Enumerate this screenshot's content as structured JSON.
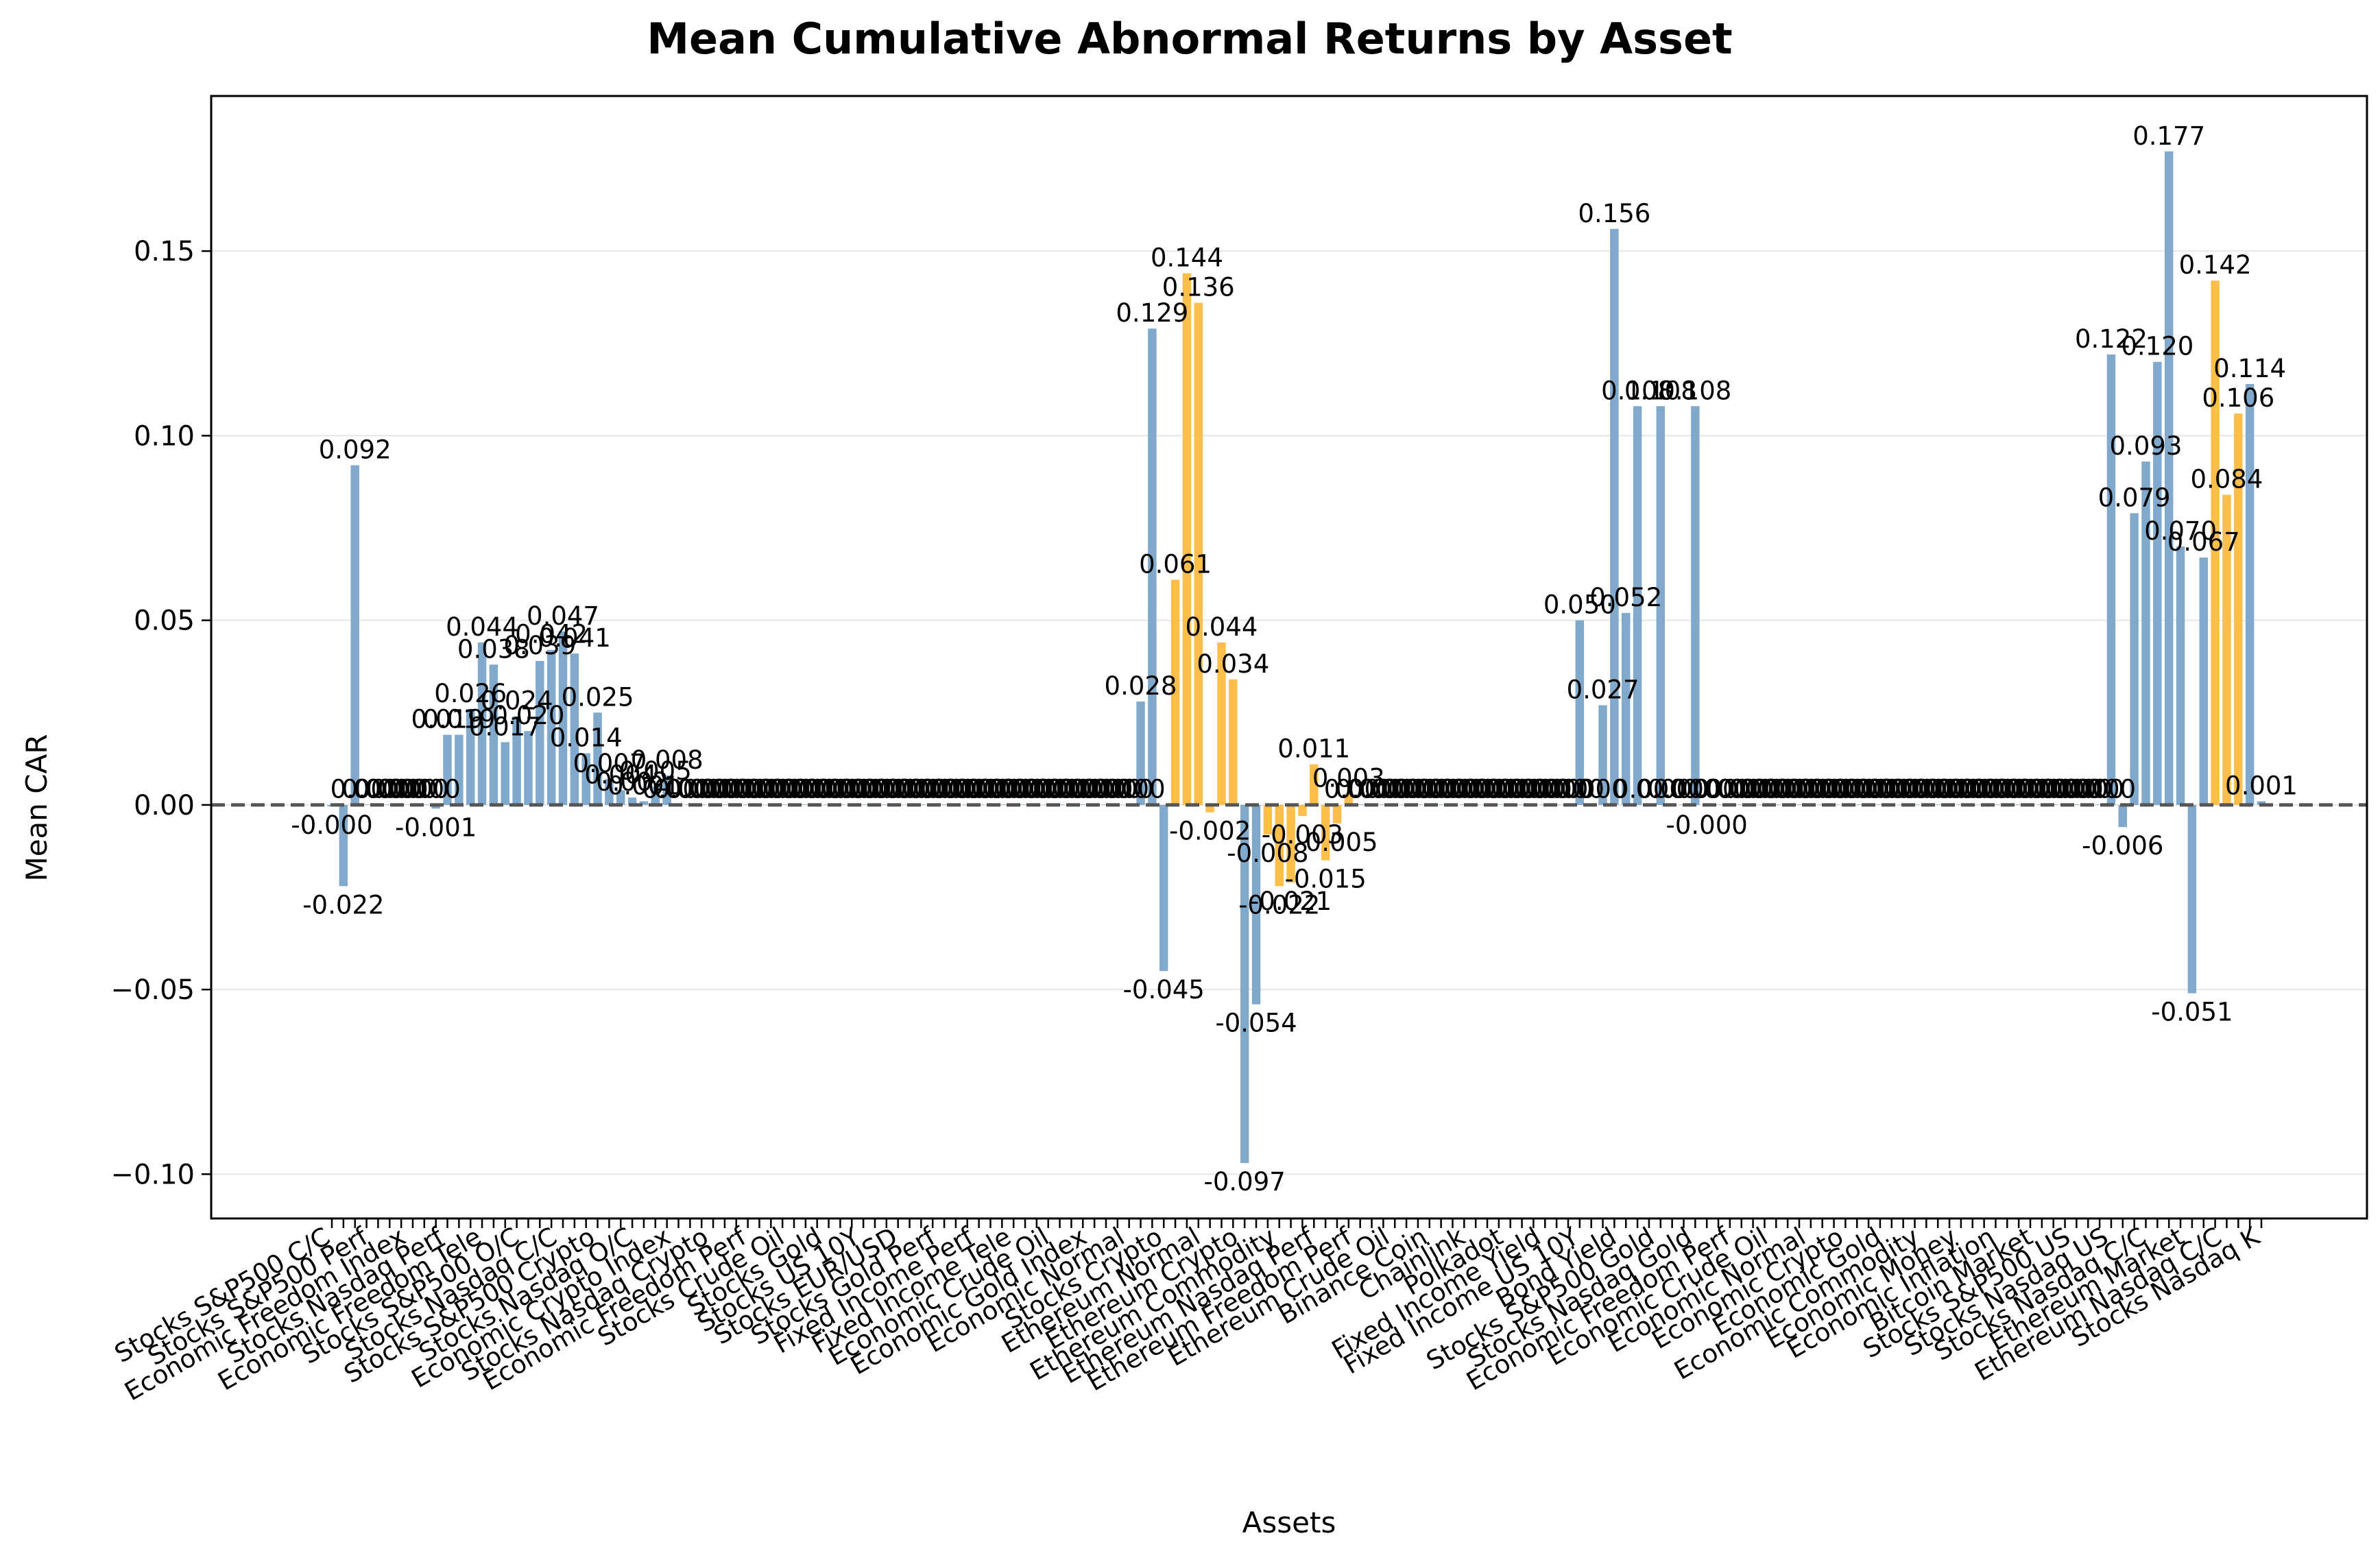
{
  "colors": {
    "bar_primary": "#81a9cc",
    "bar_highlight": "#fdbe4a",
    "zero_line": "#555555",
    "grid": "#e6e6e6",
    "axis": "#000000"
  },
  "chart_data": {
    "type": "bar",
    "title": "Mean Cumulative Abnormal Returns by Asset",
    "xlabel": "Assets",
    "ylabel": "Mean CAR",
    "ylim": [
      -0.112,
      0.192
    ],
    "yticks": [
      -0.1,
      -0.05,
      0.0,
      0.05,
      0.1,
      0.15
    ],
    "ytick_labels": [
      "−0.10",
      "−0.05",
      "0.00",
      "0.05",
      "0.10",
      "0.15"
    ],
    "grid": "y",
    "zero_line": "dashed",
    "legend": "none",
    "x_tick_labels_visible": [
      "Stocks S&P500 C/C",
      "Stocks S&P500 Perf",
      "Economic Freedom Index",
      "Stocks Nasdaq Perf",
      "Economic Freedom Tele",
      "Stocks S&P500 O/C",
      "Stocks Nasdaq C/C",
      "Stocks S&P500 Crypto",
      "Stocks Nasdaq O/C",
      "Economic Crypto Index",
      "Stocks Nasdaq Crypto",
      "Economic Freedom Perf",
      "Stocks Crude Oil",
      "Stocks Gold",
      "Stocks US 10Y",
      "Stocks EUR/USD",
      "Stocks Gold Perf",
      "Fixed Income Perf",
      "Fixed Income Tele",
      "Economic Crude Oil",
      "Economic Gold Index",
      "Economic Normal",
      "Stocks Crypto",
      "Ethereum Normal",
      "Ethereum Crypto",
      "Ethereum Commodity",
      "Ethereum Nasdaq Perf",
      "Ethereum Freedom Perf",
      "Ethereum Crude Oil",
      "Binance Coin",
      "Chainlink",
      "Polkadot",
      "Fixed Income Yield",
      "Fixed Income US 10Y",
      "Bond Yield",
      "Stocks S&P500 Gold",
      "Stocks Nasdaq Gold",
      "Economic Freedom Perf",
      "Economic Crude Oil",
      "Economic Normal",
      "Economic Crypto",
      "Economic Gold",
      "Economic Commodity",
      "Economic Money",
      "Economic Inflation",
      "Bitcoin Market",
      "Stocks S&P500 US",
      "Stocks Nasdaq US",
      "Stocks Nasdaq C/C",
      "Ethereum Market",
      "Ethereum Nasdaq C/C",
      "Stocks Nasdaq K"
    ],
    "values": [
      -0.0004,
      -0.022,
      0.092,
      0.0001,
      0.0001,
      0.0001,
      0.0001,
      0.0001,
      0.0001,
      -0.001,
      0.019,
      0.019,
      0.026,
      0.044,
      0.038,
      0.017,
      0.024,
      0.02,
      0.039,
      0.042,
      0.047,
      0.041,
      0.014,
      0.025,
      0.007,
      0.004,
      0.002,
      0.001,
      0.005,
      0.008,
      0.0001,
      0.0001,
      0.0001,
      0.0001,
      0.0001,
      0.0001,
      0.0001,
      0.0001,
      0.0001,
      0.0001,
      0.0001,
      0.0001,
      0.0001,
      0.0001,
      0.0001,
      0.0001,
      0.0001,
      0.0001,
      0.0001,
      0.0001,
      0.0001,
      0.0001,
      0.0001,
      0.0001,
      0.0001,
      0.0001,
      0.0001,
      0.0001,
      0.0001,
      0.0001,
      0.0001,
      0.0001,
      0.0001,
      0.0001,
      0.0001,
      0.0001,
      0.0001,
      0.0001,
      0.0001,
      0.0001,
      0.028,
      0.129,
      -0.045,
      0.061,
      0.144,
      0.136,
      -0.002,
      0.044,
      0.034,
      -0.097,
      -0.054,
      -0.008,
      -0.022,
      -0.021,
      -0.003,
      0.011,
      -0.015,
      -0.005,
      0.003,
      0.0001,
      0.0001,
      0.0001,
      0.0001,
      0.0001,
      0.0001,
      0.0001,
      0.0001,
      0.0001,
      0.0001,
      0.0001,
      0.0001,
      0.0001,
      0.0001,
      0.0001,
      0.0001,
      0.0001,
      0.0001,
      0.0001,
      0.05,
      0.0001,
      0.027,
      0.156,
      0.052,
      0.108,
      0.0001,
      0.108,
      0.0001,
      0.0001,
      0.108,
      -0.0004,
      0.0001,
      0.0001,
      0.0001,
      0.0001,
      0.0001,
      0.0001,
      0.0001,
      0.0001,
      0.0001,
      0.0001,
      0.0001,
      0.0001,
      0.0001,
      0.0001,
      0.0001,
      0.0001,
      0.0001,
      0.0001,
      0.0001,
      0.0001,
      0.0001,
      0.0001,
      0.0001,
      0.0001,
      0.0001,
      0.0001,
      0.0001,
      0.0001,
      0.0001,
      0.0001,
      0.0001,
      0.0001,
      0.0001,
      0.0001,
      0.122,
      -0.006,
      0.079,
      0.093,
      0.12,
      0.177,
      0.07,
      -0.051,
      0.067,
      0.142,
      0.084,
      0.106,
      0.114,
      0.001
    ],
    "value_labels": [
      "-0.000",
      "-0.022",
      "0.092",
      "0.000",
      "0.000",
      "0.000",
      "0.000",
      "0.000",
      "0.000",
      "-0.001",
      "0.019",
      "0.019",
      "0.026",
      "0.044",
      "0.038",
      "0.017",
      "0.024",
      "0.020",
      "0.039",
      "0.042",
      "0.047",
      "0.041",
      "0.014",
      "0.025",
      "0.007",
      "0.004",
      "0.002",
      "0.001",
      "0.005",
      "0.008",
      "0.000",
      "0.000",
      "0.000",
      "0.000",
      "0.000",
      "0.000",
      "0.000",
      "0.000",
      "0.000",
      "0.000",
      "0.000",
      "0.000",
      "0.000",
      "0.000",
      "0.000",
      "0.000",
      "0.000",
      "0.000",
      "0.000",
      "0.000",
      "0.000",
      "0.000",
      "0.000",
      "0.000",
      "0.000",
      "0.000",
      "0.000",
      "0.000",
      "0.000",
      "0.000",
      "0.000",
      "0.000",
      "0.000",
      "0.000",
      "0.000",
      "0.000",
      "0.000",
      "0.000",
      "0.000",
      "0.000",
      "0.028",
      "0.129",
      "-0.045",
      "0.061",
      "0.144",
      "0.136",
      "-0.002",
      "0.044",
      "0.034",
      "-0.097",
      "-0.054",
      "-0.008",
      "-0.022",
      "-0.021",
      "-0.003",
      "0.011",
      "-0.015",
      "-0.005",
      "0.003",
      "0.000",
      "0.000",
      "0.000",
      "0.000",
      "0.000",
      "0.000",
      "0.000",
      "0.000",
      "0.000",
      "0.000",
      "0.000",
      "0.000",
      "0.000",
      "0.000",
      "0.000",
      "0.000",
      "0.000",
      "0.000",
      "0.000",
      "0.050",
      "0.000",
      "0.027",
      "0.156",
      "0.052",
      "0.108",
      "0.000",
      "0.108",
      "0.000",
      "0.000",
      "0.108",
      "-0.000",
      "0.000",
      "0.000",
      "0.000",
      "0.000",
      "0.000",
      "0.000",
      "0.000",
      "0.000",
      "0.000",
      "0.000",
      "0.000",
      "0.000",
      "0.000",
      "0.000",
      "0.000",
      "0.000",
      "0.000",
      "0.000",
      "0.000",
      "0.000",
      "0.000",
      "0.000",
      "0.000",
      "0.000",
      "0.000",
      "0.000",
      "0.000",
      "0.000",
      "0.000",
      "0.000",
      "0.000",
      "0.000",
      "0.000",
      "0.000",
      "0.122",
      "-0.006",
      "0.079",
      "0.093",
      "0.120",
      "0.177",
      "0.070",
      "-0.051",
      "0.067",
      "0.142",
      "0.084",
      "0.106",
      "0.114",
      "0.001"
    ],
    "highlight": [
      0,
      0,
      0,
      0,
      0,
      0,
      0,
      0,
      0,
      0,
      0,
      0,
      0,
      0,
      0,
      0,
      0,
      0,
      0,
      0,
      0,
      0,
      0,
      0,
      0,
      0,
      0,
      0,
      0,
      0,
      0,
      0,
      0,
      0,
      0,
      0,
      0,
      0,
      0,
      0,
      0,
      0,
      0,
      0,
      0,
      0,
      0,
      0,
      0,
      0,
      0,
      0,
      0,
      0,
      0,
      0,
      0,
      0,
      0,
      0,
      0,
      0,
      0,
      0,
      0,
      0,
      0,
      0,
      0,
      0,
      0,
      0,
      0,
      1,
      1,
      1,
      1,
      1,
      1,
      0,
      0,
      1,
      1,
      1,
      1,
      1,
      1,
      1,
      1,
      0,
      0,
      0,
      0,
      0,
      0,
      0,
      0,
      0,
      0,
      0,
      0,
      0,
      0,
      0,
      0,
      0,
      0,
      0,
      0,
      0,
      0,
      0,
      0,
      0,
      0,
      0,
      0,
      0,
      0,
      0,
      0,
      0,
      0,
      0,
      0,
      0,
      0,
      0,
      0,
      0,
      0,
      0,
      0,
      0,
      0,
      0,
      0,
      0,
      0,
      0,
      0,
      0,
      0,
      0,
      0,
      0,
      0,
      0,
      0,
      0,
      0,
      0,
      0,
      0,
      0,
      0,
      0,
      0,
      0,
      0,
      0,
      0,
      0,
      1,
      1,
      1,
      0,
      0
    ]
  }
}
